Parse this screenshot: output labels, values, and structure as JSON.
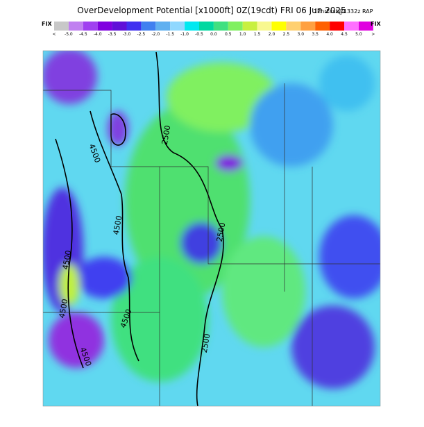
{
  "header": {
    "title": "OverDevelopment Potential [x1000ft] 0Z(19cdt) FRI 06 Jun 2025",
    "forecast": "12hrFcst@1332z RAP"
  },
  "colorbar": {
    "left_label": "FIX",
    "right_label": "FIX",
    "labels": [
      "<",
      "-5.0",
      "-4.5",
      "-4.0",
      "-3.5",
      "-3.0",
      "-2.5",
      "-2.0",
      "-1.5",
      "-1.0",
      "-0.5",
      "0.0",
      "0.5",
      "1.0",
      "1.5",
      "2.0",
      "2.5",
      "3.0",
      "3.5",
      "4.0",
      "4.5",
      "5.0",
      ">"
    ],
    "colors": [
      "#c8c8c8",
      "#c080f0",
      "#a040f0",
      "#8000e0",
      "#6010d8",
      "#4030f0",
      "#4080f0",
      "#60b0f0",
      "#90d8ff",
      "#00e8f0",
      "#00d8a0",
      "#40e080",
      "#80f060",
      "#c8f040",
      "#f8f890",
      "#ffff00",
      "#ffd070",
      "#ffa040",
      "#ff6000",
      "#ff0000",
      "#ff70ff",
      "#e000e0"
    ]
  },
  "map": {
    "contour_labels": [
      "2500",
      "4500",
      "4500",
      "2500",
      "4500",
      "2500",
      "4500",
      "4500",
      "4500"
    ]
  }
}
